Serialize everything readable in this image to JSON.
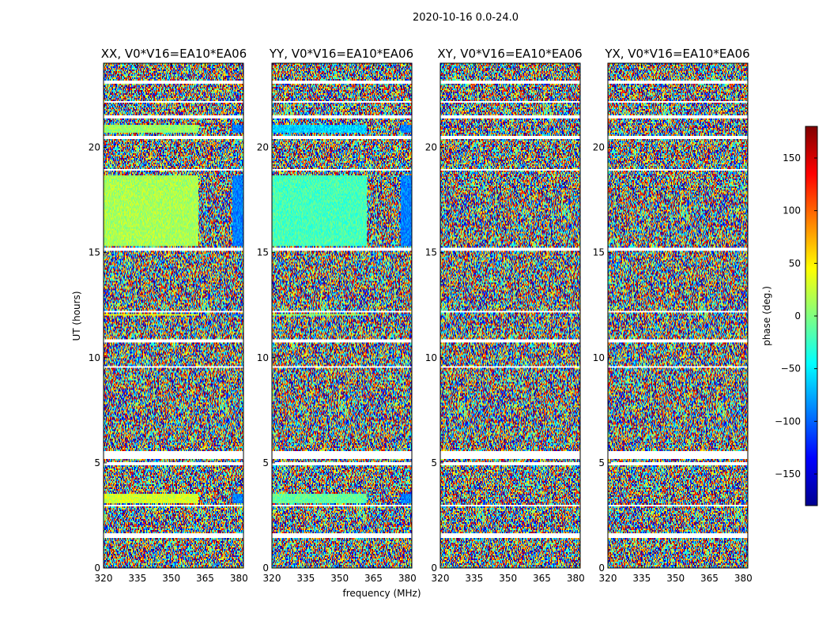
{
  "figure": {
    "suptitle": "2020-10-16 0.0-24.0",
    "xlabel": "frequency (MHz)",
    "ylabel": "UT (hours)"
  },
  "chart_data": {
    "type": "heatmap",
    "title": "2020-10-16 0.0-24.0",
    "xlabel": "frequency (MHz)",
    "ylabel": "UT (hours)",
    "xlim": [
      320,
      382
    ],
    "ylim": [
      0,
      24
    ],
    "x_ticks": [
      320,
      335,
      350,
      365,
      380
    ],
    "y_ticks": [
      0,
      5,
      10,
      15,
      20
    ],
    "panels": [
      {
        "title": "XX, V0*V16=EA10*EA06"
      },
      {
        "title": "YY, V0*V16=EA10*EA06"
      },
      {
        "title": "XY, V0*V16=EA10*EA06"
      },
      {
        "title": "YX, V0*V16=EA10*EA06"
      }
    ],
    "colorbar": {
      "label": "phase (deg.)",
      "range": [
        -180,
        180
      ],
      "ticks": [
        -150,
        -100,
        -50,
        0,
        50,
        100,
        150
      ],
      "tick_labels": [
        "−150",
        "−100",
        "−50",
        "0",
        "50",
        "100",
        "150"
      ],
      "colormap": [
        "#00008f",
        "#0000ff",
        "#0080ff",
        "#00ffff",
        "#80ff80",
        "#ffff00",
        "#ff8000",
        "#ff0000",
        "#800000"
      ]
    },
    "flagged_ut_bands": [
      [
        1.45,
        1.65
      ],
      [
        2.9,
        3.0
      ],
      [
        4.85,
        5.05
      ],
      [
        5.15,
        5.55
      ],
      [
        9.55,
        9.62
      ],
      [
        10.75,
        10.85
      ],
      [
        12.15,
        12.25
      ],
      [
        15.05,
        15.2
      ],
      [
        18.9,
        19.0
      ],
      [
        20.4,
        20.55
      ],
      [
        21.4,
        21.55
      ],
      [
        22.1,
        22.2
      ],
      [
        23.05,
        23.15
      ]
    ],
    "coherent_ut_bands": [
      {
        "from": 15.3,
        "to": 18.7,
        "mean_phase": {
          "XX": 15,
          "YY": -20,
          "XY": "noise",
          "YX": "noise"
        }
      },
      {
        "from": 20.7,
        "to": 21.1,
        "mean_phase": {
          "XX": 10,
          "YY": -60,
          "XY": "noise",
          "YX": "noise"
        }
      },
      {
        "from": 3.1,
        "to": 3.5,
        "mean_phase": {
          "XX": 30,
          "YY": -10,
          "XY": "noise",
          "YX": "noise"
        }
      },
      {
        "from": 12.0,
        "to": 12.1,
        "mean_phase": {
          "XX": 40,
          "YY": 10,
          "XY": "noise",
          "YX": "noise"
        }
      }
    ]
  }
}
